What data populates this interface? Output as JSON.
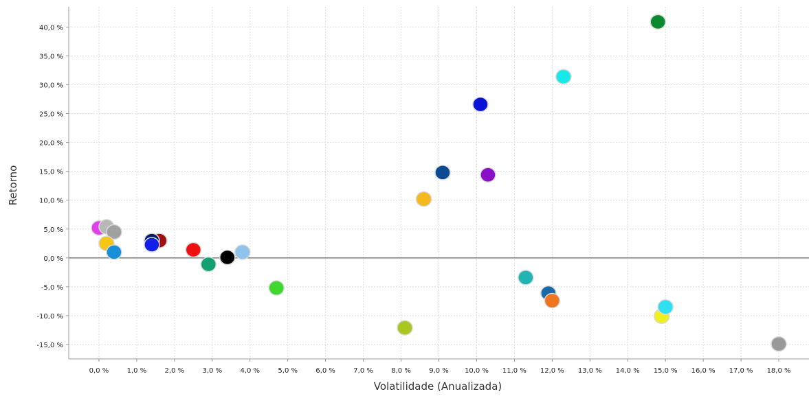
{
  "chart_data": {
    "type": "scatter",
    "xlabel": "Volatilidade (Anualizada)",
    "ylabel": "Retorno",
    "xlim": [
      -0.8,
      18.8
    ],
    "ylim": [
      -17.5,
      43.5
    ],
    "grid": true,
    "x_ticks": [
      0,
      1,
      2,
      3,
      4,
      5,
      6,
      7,
      8,
      9,
      10,
      11,
      12,
      13,
      14,
      15,
      16,
      17,
      18
    ],
    "x_tick_labels": [
      "0,0 %",
      "1,0 %",
      "2,0 %",
      "3,0 %",
      "4,0 %",
      "5,0 %",
      "6,0 %",
      "7,0 %",
      "8,0 %",
      "9,0 %",
      "10,0 %",
      "11,0 %",
      "12,0 %",
      "13,0 %",
      "14,0 %",
      "15,0 %",
      "16,0 %",
      "17,0 %",
      "18,0 %"
    ],
    "y_ticks": [
      -15,
      -10,
      -5,
      0,
      5,
      10,
      15,
      20,
      25,
      30,
      35,
      40
    ],
    "y_tick_labels": [
      "-15,0 %",
      "-10,0 %",
      "-5,0 %",
      "0,0 %",
      "5,0 %",
      "10,0 %",
      "15,0 %",
      "20,0 %",
      "25,0 %",
      "30,0 %",
      "35,0 %",
      "40,0 %"
    ],
    "zero_line_y": 0,
    "points": [
      {
        "x": 14.8,
        "y": 40.9,
        "color": "#0a8a2e"
      },
      {
        "x": 12.3,
        "y": 31.4,
        "color": "#19e8e8"
      },
      {
        "x": 10.1,
        "y": 26.6,
        "color": "#0a12d8"
      },
      {
        "x": 9.1,
        "y": 14.8,
        "color": "#0d4a94"
      },
      {
        "x": 10.3,
        "y": 14.4,
        "color": "#8a10c8"
      },
      {
        "x": 8.6,
        "y": 10.2,
        "color": "#f5b81e"
      },
      {
        "x": 0.0,
        "y": 5.2,
        "color": "#e040e8"
      },
      {
        "x": 0.2,
        "y": 5.4,
        "color": "#b8b8b8"
      },
      {
        "x": 0.4,
        "y": 4.5,
        "color": "#a0a0a0"
      },
      {
        "x": 0.2,
        "y": 2.5,
        "color": "#f5c518"
      },
      {
        "x": 0.4,
        "y": 1.0,
        "color": "#1890d8"
      },
      {
        "x": 1.6,
        "y": 3.0,
        "color": "#a01010"
      },
      {
        "x": 1.4,
        "y": 3.0,
        "color": "#0c1c60"
      },
      {
        "x": 1.4,
        "y": 2.3,
        "color": "#1020e8"
      },
      {
        "x": 2.5,
        "y": 1.4,
        "color": "#ee1010"
      },
      {
        "x": 2.9,
        "y": -1.1,
        "color": "#14a070"
      },
      {
        "x": 3.4,
        "y": 0.1,
        "color": "#000000"
      },
      {
        "x": 3.8,
        "y": 1.0,
        "color": "#8ec4ec"
      },
      {
        "x": 4.7,
        "y": -5.2,
        "color": "#40d830"
      },
      {
        "x": 8.1,
        "y": -12.1,
        "color": "#a8c820"
      },
      {
        "x": 11.3,
        "y": -3.4,
        "color": "#20b4b4"
      },
      {
        "x": 11.9,
        "y": -6.1,
        "color": "#1a6aaa"
      },
      {
        "x": 12.0,
        "y": -7.4,
        "color": "#ee7620"
      },
      {
        "x": 14.9,
        "y": -10.1,
        "color": "#f0f020"
      },
      {
        "x": 15.0,
        "y": -8.5,
        "color": "#30e0f0"
      },
      {
        "x": 18.0,
        "y": -14.9,
        "color": "#999999"
      }
    ]
  }
}
